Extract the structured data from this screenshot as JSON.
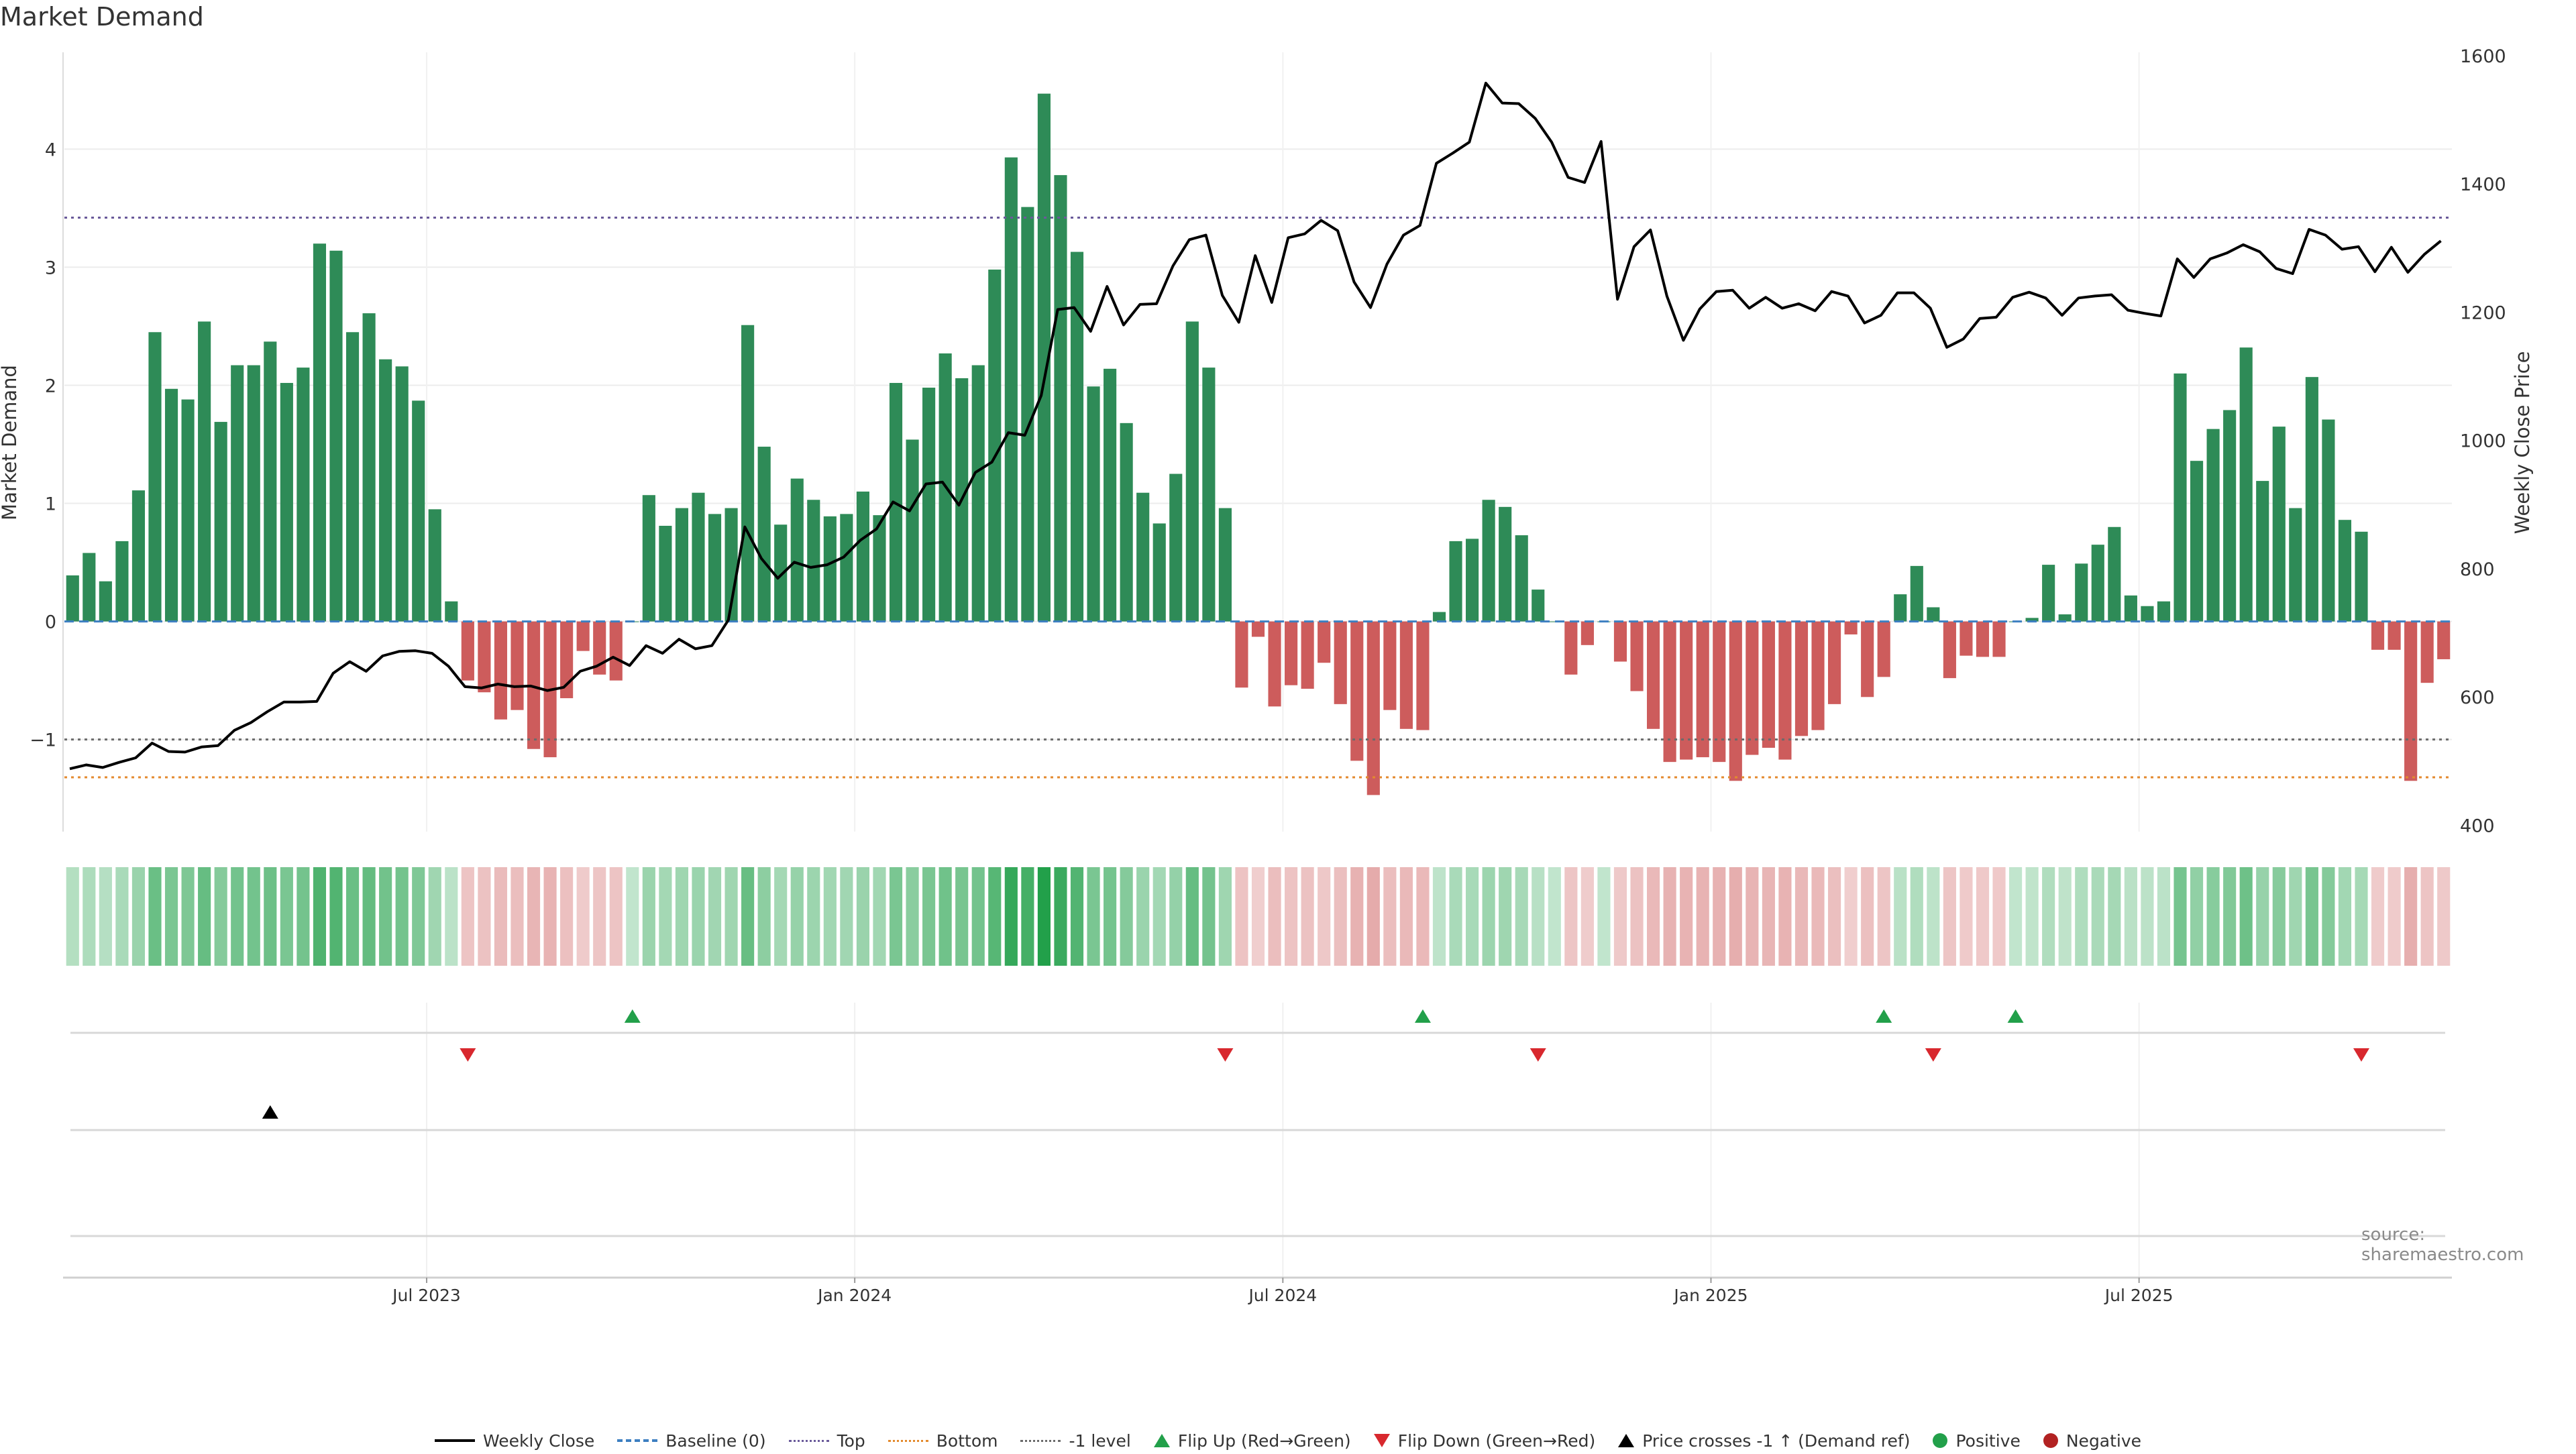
{
  "chart_data": {
    "type": "bar",
    "title": "Market Demand",
    "ylabel": "Market Demand",
    "y2label": "Weekly Close Price",
    "ylim": [
      -1.78,
      4.82
    ],
    "y2lim": [
      390,
      1605
    ],
    "yticks": [
      -1,
      0,
      1,
      2,
      3,
      4
    ],
    "y2ticks": [
      400,
      600,
      800,
      1000,
      1200,
      1400,
      1600
    ],
    "xticks": [
      "Jul 2023",
      "Jan 2024",
      "Jul 2024",
      "Jan 2025",
      "Jul 2025"
    ],
    "xtick_week_index": [
      22,
      48,
      74,
      100,
      126
    ],
    "reference_lines": {
      "baseline": 0,
      "top": 3.42,
      "bottom": -1.32,
      "minus_one": -1
    },
    "demand": [
      0.39,
      0.58,
      0.34,
      0.68,
      1.11,
      2.45,
      1.97,
      1.88,
      2.54,
      1.69,
      2.17,
      2.17,
      2.37,
      2.02,
      2.15,
      3.2,
      3.14,
      2.45,
      2.61,
      2.22,
      2.16,
      1.87,
      0.95,
      0.17,
      -0.5,
      -0.6,
      -0.83,
      -0.75,
      -1.08,
      -1.15,
      -0.65,
      -0.25,
      -0.45,
      -0.5,
      0,
      1.07,
      0.81,
      0.96,
      1.09,
      0.91,
      0.96,
      2.51,
      1.48,
      0.82,
      1.21,
      1.03,
      0.89,
      0.91,
      1.1,
      0.9,
      2.02,
      1.54,
      1.98,
      2.27,
      2.06,
      2.17,
      2.98,
      3.93,
      3.51,
      4.47,
      3.78,
      3.13,
      1.99,
      2.14,
      1.68,
      1.09,
      0.83,
      1.25,
      2.54,
      2.15,
      0.96,
      -0.56,
      -0.13,
      -0.72,
      -0.54,
      -0.57,
      -0.35,
      -0.7,
      -1.18,
      -1.47,
      -0.75,
      -0.91,
      -0.92,
      0.08,
      0.68,
      0.7,
      1.03,
      0.97,
      0.73,
      0.27,
      0,
      -0.45,
      -0.2,
      0,
      -0.34,
      -0.59,
      -0.91,
      -1.19,
      -1.17,
      -1.15,
      -1.19,
      -1.35,
      -1.13,
      -1.07,
      -1.17,
      -0.97,
      -0.92,
      -0.7,
      -0.11,
      -0.64,
      -0.47,
      0.23,
      0.47,
      0.12,
      -0.48,
      -0.29,
      -0.3,
      -0.3,
      0,
      0.03,
      0.48,
      0.06,
      0.49,
      0.65,
      0.8,
      0.22,
      0.13,
      0.17,
      2.1,
      1.36,
      1.63,
      1.79,
      2.32,
      1.19,
      1.65,
      0.96,
      2.07,
      1.71,
      0.86,
      0.76,
      -0.24,
      -0.24,
      -1.35,
      -0.52,
      -0.32
    ],
    "close": [
      488,
      494,
      490,
      498,
      505,
      528,
      515,
      514,
      522,
      524,
      548,
      560,
      577,
      592,
      592,
      593,
      637,
      655,
      640,
      664,
      671,
      672,
      668,
      648,
      616,
      614,
      620,
      616,
      617,
      610,
      615,
      640,
      648,
      662,
      649,
      680,
      668,
      690,
      675,
      680,
      720,
      865,
      816,
      785,
      810,
      802,
      806,
      818,
      844,
      862,
      904,
      890,
      932,
      935,
      899,
      950,
      966,
      1012,
      1008,
      1070,
      1204,
      1207,
      1170,
      1240,
      1180,
      1212,
      1213,
      1272,
      1313,
      1320,
      1226,
      1184,
      1288,
      1215,
      1316,
      1322,
      1343,
      1327,
      1247,
      1207,
      1275,
      1320,
      1335,
      1432,
      1448,
      1465,
      1557,
      1526,
      1525,
      1502,
      1465,
      1410,
      1402,
      1466,
      1220,
      1302,
      1328,
      1225,
      1156,
      1205,
      1232,
      1234,
      1206,
      1223,
      1206,
      1213,
      1202,
      1232,
      1225,
      1183,
      1195,
      1230,
      1230,
      1206,
      1145,
      1158,
      1190,
      1192,
      1223,
      1231,
      1222,
      1195,
      1222,
      1225,
      1227,
      1203,
      1198,
      1194,
      1283,
      1254,
      1283,
      1292,
      1305,
      1294,
      1268,
      1260,
      1329,
      1320,
      1298,
      1302,
      1263,
      1301,
      1262,
      1290,
      1311
    ],
    "flip_up_week_index": [
      34,
      82,
      110,
      118
    ],
    "flip_down_week_index": [
      24,
      70,
      89,
      113,
      139
    ],
    "price_cross_week_index": [
      12
    ],
    "legend": [
      {
        "key": "weekly_close",
        "label": "Weekly Close"
      },
      {
        "key": "baseline",
        "label": "Baseline (0)"
      },
      {
        "key": "top",
        "label": "Top"
      },
      {
        "key": "bottom",
        "label": "Bottom"
      },
      {
        "key": "minus_one",
        "label": "-1 level"
      },
      {
        "key": "flip_up",
        "label": "Flip Up (Red→Green)"
      },
      {
        "key": "flip_down",
        "label": "Flip Down (Green→Red)"
      },
      {
        "key": "price_cross",
        "label": "Price crosses -1 ↑ (Demand ref)"
      },
      {
        "key": "positive",
        "label": "Positive"
      },
      {
        "key": "negative",
        "label": "Negative"
      }
    ],
    "source": "source: sharemaestro.com",
    "colors": {
      "positive": "#2e8b57",
      "negative": "#cd5c5c",
      "price": "#000000",
      "baseline": "#3d7fc1",
      "top": "#6a5a9a",
      "bottom": "#e38a2e",
      "minus_one": "#6b6b6b",
      "flip_up": "#22a04a",
      "flip_down": "#d8282e"
    }
  }
}
